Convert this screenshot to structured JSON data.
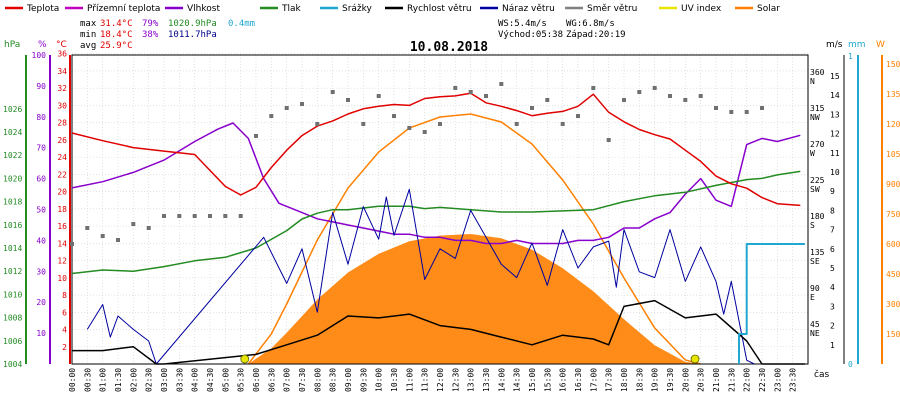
{
  "chart_data": {
    "type": "line",
    "title": "10.08.2018",
    "legend": [
      {
        "name": "Teplota",
        "color": "#e00000",
        "kind": "line"
      },
      {
        "name": "Přízemní teplota",
        "color": "#c000c0",
        "kind": "line"
      },
      {
        "name": "Vlhkost",
        "color": "#8800cc",
        "kind": "line"
      },
      {
        "name": "Tlak",
        "color": "#228b22",
        "kind": "line"
      },
      {
        "name": "Srážky",
        "color": "#22a8d0",
        "kind": "line"
      },
      {
        "name": "Rychlost větru",
        "color": "#000000",
        "kind": "line"
      },
      {
        "name": "Náraz větru",
        "color": "#0000a0",
        "kind": "line"
      },
      {
        "name": "Směr větru",
        "color": "#808080",
        "kind": "line"
      },
      {
        "name": "UV index",
        "color": "#e6e600",
        "kind": "line"
      },
      {
        "name": "Solar",
        "color": "#ff8000",
        "kind": "line"
      }
    ],
    "stats": {
      "max_label": "max",
      "max_temp": "31.4°C",
      "max_hum": "79%",
      "max_press": "1020.9hPa",
      "max_rain": "0.4mm",
      "min_label": "min",
      "min_temp": "18.4°C",
      "min_hum": "38%",
      "min_press": "1011.7hPa",
      "avg_label": "avg",
      "avg_temp": "25.9°C",
      "ws": "WS:5.4m/s",
      "wg": "WG:6.8m/s",
      "sunrise": "Východ:05:38",
      "sunset": "Západ:20:19"
    },
    "axes": {
      "pressure": {
        "unit": "hPa",
        "ticks": [
          "1004",
          "1006",
          "1008",
          "1010",
          "1012",
          "1014",
          "1016",
          "1018",
          "1020",
          "1022",
          "1024",
          "1026"
        ],
        "range": [
          1004,
          1027
        ]
      },
      "humidity": {
        "unit": "%",
        "ticks": [
          "10",
          "20",
          "30",
          "40",
          "50",
          "60",
          "70",
          "80",
          "90",
          "100"
        ],
        "range": [
          0,
          100
        ]
      },
      "temperature": {
        "unit": "°C",
        "ticks": [
          "2",
          "4",
          "6",
          "8",
          "10",
          "12",
          "14",
          "16",
          "18",
          "20",
          "22",
          "24",
          "26",
          "28",
          "30",
          "32",
          "34",
          "36"
        ],
        "range": [
          0,
          37
        ]
      },
      "direction": {
        "ticks": [
          "45",
          "90",
          "135",
          "180",
          "225",
          "270",
          "315",
          "360"
        ],
        "labels": [
          "NE",
          "E",
          "SE",
          "S",
          "SW",
          "W",
          "NW",
          "N"
        ]
      },
      "wind": {
        "unit": "m/s",
        "ticks": [
          "1",
          "2",
          "3",
          "4",
          "5",
          "6",
          "7",
          "8",
          "9",
          "10",
          "11",
          "12",
          "13",
          "14",
          "15"
        ],
        "range": [
          0,
          16
        ]
      },
      "rain": {
        "unit": "mm",
        "ticks": [
          "0",
          "1"
        ]
      },
      "solar": {
        "unit": "W",
        "ticks": [
          "150",
          "300",
          "450",
          "600",
          "750",
          "900",
          "1050",
          "1200",
          "1350",
          "1500"
        ],
        "range": [
          0,
          1600
        ]
      },
      "time": {
        "label": "čas",
        "ticks": [
          "00:00",
          "00:30",
          "01:00",
          "01:30",
          "02:00",
          "02:30",
          "03:00",
          "03:30",
          "04:00",
          "04:30",
          "05:00",
          "05:30",
          "06:00",
          "06:30",
          "07:00",
          "07:30",
          "08:00",
          "08:30",
          "09:00",
          "09:30",
          "10:00",
          "10:30",
          "11:00",
          "11:30",
          "12:00",
          "12:30",
          "13:00",
          "13:30",
          "14:00",
          "14:30",
          "15:00",
          "15:30",
          "16:00",
          "16:30",
          "17:00",
          "17:30",
          "18:00",
          "18:30",
          "19:00",
          "19:30",
          "20:00",
          "20:30",
          "21:00",
          "21:30",
          "22:00",
          "22:30",
          "23:00",
          "23:30"
        ]
      }
    },
    "series": {
      "temperature": {
        "name": "Teplota",
        "unit": "°C",
        "x_hours": [
          0,
          1,
          2,
          3,
          4,
          5,
          5.5,
          6,
          6.5,
          7,
          7.5,
          8,
          8.5,
          9,
          9.5,
          10,
          10.5,
          11,
          11.5,
          12,
          12.5,
          13,
          13.5,
          14,
          14.5,
          15,
          15.5,
          16,
          16.5,
          17,
          17.5,
          18,
          18.5,
          19,
          19.5,
          20,
          20.5,
          21,
          21.5,
          22,
          22.5,
          23,
          23.75
        ],
        "values": [
          26.8,
          25.9,
          25.1,
          24.7,
          24.3,
          20.6,
          19.6,
          20.5,
          22.8,
          24.8,
          26.5,
          27.6,
          28.2,
          29.0,
          29.6,
          29.9,
          30.1,
          30.0,
          30.8,
          31.0,
          31.1,
          31.4,
          30.3,
          29.9,
          29.4,
          28.8,
          29.1,
          29.3,
          29.9,
          31.3,
          29.2,
          28.1,
          27.2,
          26.6,
          26.1,
          24.8,
          23.5,
          21.8,
          20.9,
          20.4,
          19.3,
          18.6,
          18.4
        ]
      },
      "humidity": {
        "name": "Vlhkost",
        "unit": "%",
        "x_hours": [
          0,
          1,
          2,
          3,
          4,
          4.75,
          5.25,
          5.75,
          6.25,
          6.75,
          7.5,
          8,
          8.5,
          9,
          9.5,
          10,
          10.5,
          11,
          11.5,
          12,
          12.5,
          13,
          13.5,
          14,
          14.5,
          15,
          15.5,
          16,
          16.5,
          17,
          17.5,
          18,
          18.5,
          19,
          19.5,
          20,
          20.5,
          21,
          21.5,
          22,
          22.5,
          23,
          23.75
        ],
        "values": [
          57,
          59,
          62,
          66,
          72,
          76,
          78,
          73,
          60,
          52,
          49,
          47,
          46,
          45,
          44,
          43,
          42,
          42,
          41,
          41,
          40,
          40,
          39,
          39,
          40,
          39,
          39,
          39,
          40,
          40,
          41,
          44,
          44,
          47,
          49,
          55,
          60,
          53,
          51,
          71,
          73,
          72,
          74
        ]
      },
      "pressure": {
        "name": "Tlak",
        "unit": "hPa",
        "x_hours": [
          0,
          1,
          2,
          3,
          4,
          5,
          6,
          7,
          7.5,
          8,
          8.5,
          9,
          10,
          11,
          11.5,
          12,
          13,
          14,
          15,
          16,
          17,
          18,
          19,
          20,
          21,
          22,
          22.5,
          23,
          23.75
        ],
        "values": [
          1011.8,
          1012.1,
          1012.0,
          1012.4,
          1012.9,
          1013.2,
          1014.0,
          1015.5,
          1016.5,
          1017.0,
          1017.3,
          1017.3,
          1017.6,
          1017.6,
          1017.4,
          1017.5,
          1017.3,
          1017.1,
          1017.1,
          1017.2,
          1017.3,
          1018.0,
          1018.5,
          1018.8,
          1019.4,
          1019.9,
          1020.0,
          1020.3,
          1020.6
        ]
      },
      "rain": {
        "name": "Srážky",
        "unit": "mm",
        "x_hours": [
          21.75,
          21.75,
          22.0,
          22.0,
          23.9
        ],
        "values": [
          0.0,
          0.1,
          0.1,
          0.4,
          0.4
        ]
      },
      "solar": {
        "name": "Solar",
        "unit": "W",
        "x_hours": [
          5.75,
          6.5,
          7,
          8,
          9,
          10,
          11,
          12,
          13,
          14,
          15,
          16,
          17,
          18,
          19,
          20,
          20.5
        ],
        "values": [
          0,
          150,
          300,
          620,
          880,
          1060,
          1180,
          1235,
          1250,
          1210,
          1100,
          920,
          700,
          430,
          180,
          20,
          0
        ]
      },
      "wind_speed": {
        "name": "Rychlost větru",
        "unit": "m/s",
        "x_hours": [
          0,
          1,
          2,
          2.75,
          3,
          6,
          7,
          8,
          9,
          10,
          11,
          12,
          13,
          14,
          15,
          16,
          17,
          17.5,
          18,
          19,
          20,
          21,
          22,
          22.5,
          23.9
        ],
        "values": [
          0.7,
          0.7,
          0.9,
          0,
          0,
          0.5,
          1.0,
          1.5,
          2.5,
          2.4,
          2.6,
          2.0,
          1.8,
          1.4,
          1.0,
          1.5,
          1.3,
          1.0,
          3.0,
          3.3,
          2.4,
          2.6,
          1.2,
          0,
          0
        ]
      },
      "wind_gust": {
        "name": "Náraz větru",
        "unit": "m/s",
        "x_hours": [
          0.5,
          1,
          1.25,
          1.5,
          2,
          2.5,
          2.75,
          6.25,
          7,
          7.5,
          8,
          8.5,
          9,
          9.5,
          10,
          10.25,
          10.5,
          11,
          11.5,
          12,
          12.5,
          13,
          13.5,
          14,
          14.5,
          15,
          15.5,
          16,
          16.5,
          17,
          17.5,
          17.75,
          18,
          18.5,
          19,
          19.5,
          20,
          20.5,
          21,
          21.25,
          21.5,
          22,
          22.25
        ],
        "values": [
          1.8,
          3.1,
          1.4,
          2.5,
          1.8,
          1.2,
          0,
          6.6,
          4.2,
          6.0,
          2.7,
          7.9,
          5.2,
          8.2,
          6.5,
          8.7,
          6.7,
          9.1,
          4.4,
          6.0,
          5.5,
          8.0,
          6.6,
          5.2,
          4.5,
          6.3,
          4.1,
          7.0,
          5.0,
          6.1,
          6.4,
          4.0,
          7.0,
          4.8,
          4.5,
          7.0,
          4.3,
          6.1,
          4.3,
          2.6,
          4.3,
          0.2,
          0
        ]
      },
      "wind_direction": {
        "name": "Směr větru",
        "unit": "°",
        "x_hours": [
          0,
          0.5,
          1,
          1.5,
          2,
          2.5,
          3,
          3.5,
          4,
          4.5,
          5,
          5.5,
          6,
          6.5,
          7,
          7.5,
          8,
          8.5,
          9,
          9.5,
          10,
          10.5,
          11,
          11.5,
          12,
          12.5,
          13,
          13.5,
          14,
          14.5,
          15,
          15.5,
          16,
          16.5,
          17,
          17.5,
          18,
          18.5,
          19,
          19.5,
          20,
          20.5,
          21,
          21.5,
          22,
          22.5
        ],
        "values": [
          150,
          170,
          160,
          155,
          175,
          170,
          185,
          185,
          185,
          185,
          185,
          185,
          285,
          310,
          320,
          325,
          300,
          340,
          330,
          300,
          335,
          310,
          295,
          290,
          300,
          345,
          340,
          335,
          350,
          300,
          320,
          330,
          300,
          310,
          345,
          280,
          330,
          340,
          345,
          335,
          330,
          335,
          320,
          315,
          315,
          320
        ]
      }
    }
  }
}
